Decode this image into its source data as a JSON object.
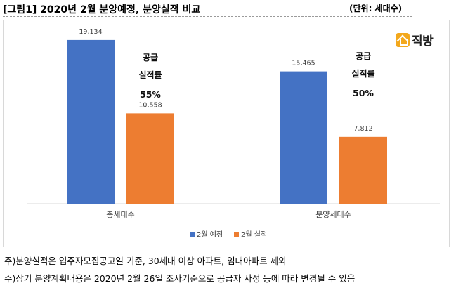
{
  "header": {
    "title": "[그림1] 2020년 2월 분양예정, 분양실적 비교",
    "unit": "(단위: 세대수)"
  },
  "logo": {
    "text": "직방",
    "icon": "house-icon"
  },
  "colors": {
    "plan": "#4472C4",
    "actual": "#ED7D31"
  },
  "chart_data": {
    "type": "bar",
    "title": "2020년 2월 분양예정, 분양실적 비교",
    "categories": [
      "총세대수",
      "분양세대수"
    ],
    "series": [
      {
        "name": "2월 예정",
        "values": [
          19134,
          15465
        ],
        "labels": [
          "19,134",
          "15,465"
        ]
      },
      {
        "name": "2월 실적",
        "values": [
          10558,
          7812
        ],
        "labels": [
          "10,558",
          "7,812"
        ]
      }
    ],
    "annotations": [
      {
        "category": "총세대수",
        "lines": [
          "공급",
          "실적률",
          "55%"
        ]
      },
      {
        "category": "분양세대수",
        "lines": [
          "공급",
          "실적률",
          "50%"
        ]
      }
    ],
    "ylim": [
      0,
      22000
    ],
    "grid": false,
    "legend": "bottom"
  },
  "notes": [
    "주)분양실적은 입주자모집공고일 기준, 30세대 이상 아파트, 임대아파트 제외",
    "주)상기 분양계획내용은 2020년 2월 26일 조사기준으로 공급자 사정 등에 따라 변경될 수 있음"
  ]
}
